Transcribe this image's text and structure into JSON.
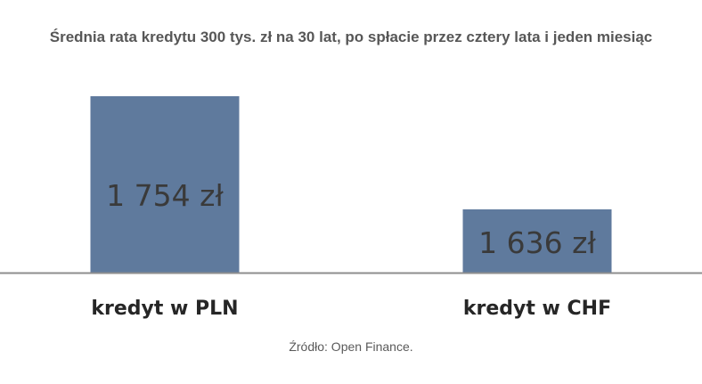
{
  "chart_data": {
    "type": "bar",
    "title": "Średnia rata kredytu 300 tys. zł na 30 lat, po spłacie przez cztery lata i jeden miesiąc",
    "categories": [
      "kredyt w PLN",
      "kredyt w CHF"
    ],
    "values": [
      1754,
      1636
    ],
    "data_labels": [
      "1 754 zł",
      "1 636 zł"
    ],
    "ylim": [
      1570,
      1770
    ],
    "grid": false,
    "legend": "none",
    "source": "Źródło: Open Finance.",
    "colors": {
      "bar": "#5f7a9d",
      "baseline": "#8e8e8e"
    }
  }
}
